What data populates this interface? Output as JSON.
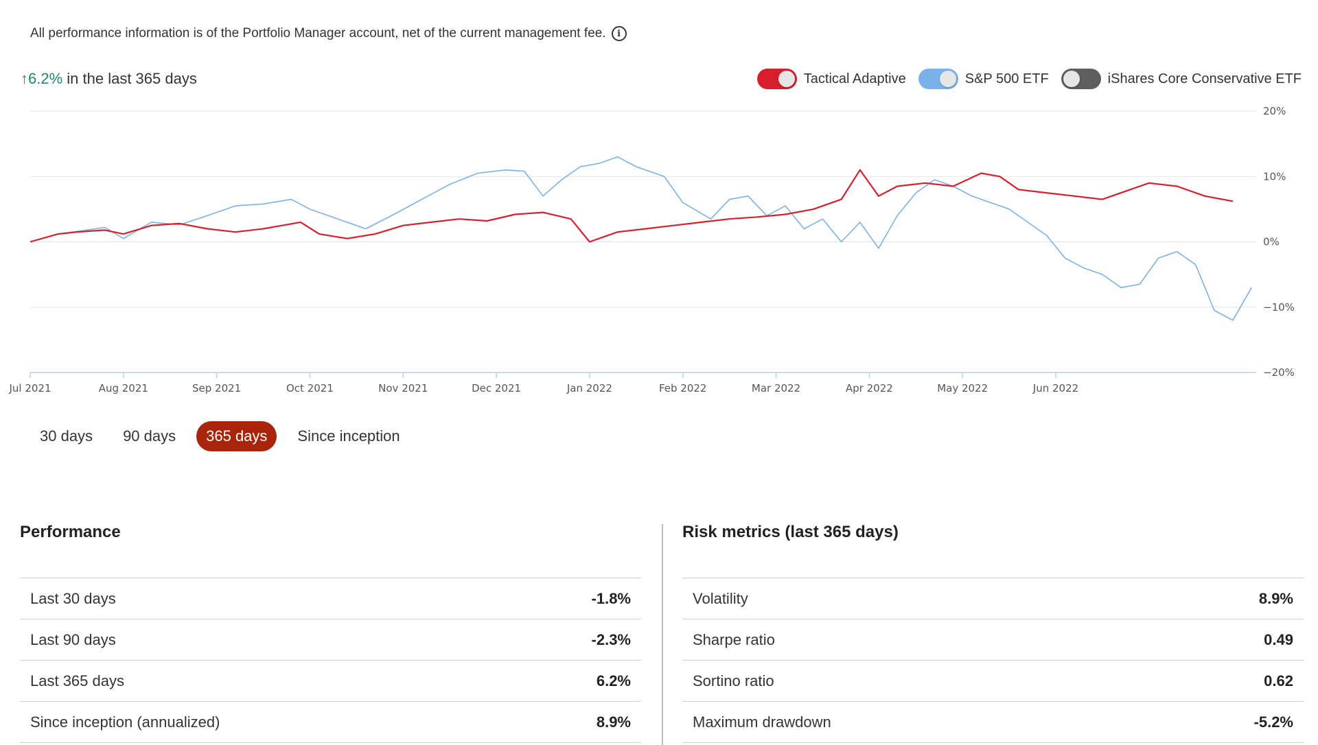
{
  "disclaimer": "All performance information is of the Portfolio Manager account, net of the current management fee.",
  "info_icon": "info-icon",
  "summary": {
    "change": "↑6.2%",
    "suffix": " in the last 365 days"
  },
  "legend": [
    {
      "label": "Tactical Adaptive",
      "color": "#d81e2c",
      "state": "on"
    },
    {
      "label": "S&P 500 ETF",
      "color": "#7ab1e8",
      "state": "on"
    },
    {
      "label": "iShares Core Conservative ETF",
      "color": "#5e5e5e",
      "state": "off"
    }
  ],
  "periods": [
    {
      "label": "30 days",
      "active": false
    },
    {
      "label": "90 days",
      "active": false
    },
    {
      "label": "365 days",
      "active": true
    },
    {
      "label": "Since inception",
      "active": false
    }
  ],
  "performance": {
    "title": "Performance",
    "rows": [
      {
        "label": "Last 30 days",
        "value": "-1.8%"
      },
      {
        "label": "Last 90 days",
        "value": "-2.3%"
      },
      {
        "label": "Last 365 days",
        "value": "6.2%"
      },
      {
        "label": "Since inception (annualized)",
        "value": "8.9%"
      }
    ]
  },
  "risk": {
    "title": "Risk metrics (last 365 days)",
    "rows": [
      {
        "label": "Volatility",
        "value": "8.9%"
      },
      {
        "label": "Sharpe ratio",
        "value": "0.49"
      },
      {
        "label": "Sortino ratio",
        "value": "0.62"
      },
      {
        "label": "Maximum drawdown",
        "value": "-5.2%"
      }
    ]
  },
  "chart_data": {
    "type": "line",
    "title": "",
    "xlabel": "",
    "ylabel": "",
    "x_ticks": [
      "Jul 2021",
      "Aug 2021",
      "Sep 2021",
      "Oct 2021",
      "Nov 2021",
      "Dec 2021",
      "Jan 2022",
      "Feb 2022",
      "Mar 2022",
      "Apr 2022",
      "May 2022",
      "Jun 2022"
    ],
    "y_ticks": [
      "20%",
      "10%",
      "0%",
      "−10%",
      "−20%"
    ],
    "ylim": [
      -20,
      20
    ],
    "grid": true,
    "legend_position": "top-right",
    "x_unit": "months since Jul 2021",
    "series": [
      {
        "name": "Tactical Adaptive",
        "color": "#d81e2c",
        "points": [
          [
            0,
            0
          ],
          [
            0.3,
            1.2
          ],
          [
            0.5,
            1.5
          ],
          [
            0.8,
            1.8
          ],
          [
            1.0,
            1.2
          ],
          [
            1.3,
            2.5
          ],
          [
            1.6,
            2.8
          ],
          [
            1.9,
            2.0
          ],
          [
            2.2,
            1.5
          ],
          [
            2.5,
            2.0
          ],
          [
            2.9,
            3.0
          ],
          [
            3.1,
            1.2
          ],
          [
            3.4,
            0.5
          ],
          [
            3.7,
            1.2
          ],
          [
            4.0,
            2.5
          ],
          [
            4.3,
            3.0
          ],
          [
            4.6,
            3.5
          ],
          [
            4.9,
            3.2
          ],
          [
            5.2,
            4.2
          ],
          [
            5.5,
            4.5
          ],
          [
            5.8,
            3.5
          ],
          [
            6.0,
            0.0
          ],
          [
            6.3,
            1.5
          ],
          [
            6.6,
            2.0
          ],
          [
            6.9,
            2.5
          ],
          [
            7.2,
            3.0
          ],
          [
            7.5,
            3.5
          ],
          [
            7.8,
            3.8
          ],
          [
            8.1,
            4.2
          ],
          [
            8.4,
            5.0
          ],
          [
            8.7,
            6.5
          ],
          [
            8.9,
            11.0
          ],
          [
            9.1,
            7.0
          ],
          [
            9.3,
            8.5
          ],
          [
            9.6,
            9.0
          ],
          [
            9.9,
            8.5
          ],
          [
            10.2,
            10.5
          ],
          [
            10.4,
            10.0
          ],
          [
            10.6,
            8.0
          ],
          [
            10.9,
            7.5
          ],
          [
            11.2,
            7.0
          ],
          [
            11.5,
            6.5
          ],
          [
            11.8,
            8.0
          ],
          [
            12.0,
            9.0
          ],
          [
            12.3,
            8.5
          ],
          [
            12.6,
            7.0
          ],
          [
            12.9,
            6.2
          ]
        ]
      },
      {
        "name": "S&P 500 ETF",
        "color": "#7ab1e8",
        "points": [
          [
            0,
            0
          ],
          [
            0.3,
            1.2
          ],
          [
            0.6,
            1.8
          ],
          [
            0.8,
            2.2
          ],
          [
            1.0,
            0.5
          ],
          [
            1.3,
            3.0
          ],
          [
            1.6,
            2.6
          ],
          [
            1.9,
            4.0
          ],
          [
            2.2,
            5.5
          ],
          [
            2.5,
            5.8
          ],
          [
            2.8,
            6.5
          ],
          [
            3.0,
            5.0
          ],
          [
            3.3,
            3.5
          ],
          [
            3.6,
            2.0
          ],
          [
            3.9,
            4.2
          ],
          [
            4.2,
            6.5
          ],
          [
            4.5,
            8.8
          ],
          [
            4.8,
            10.5
          ],
          [
            5.1,
            11.0
          ],
          [
            5.3,
            10.8
          ],
          [
            5.5,
            7.0
          ],
          [
            5.7,
            9.5
          ],
          [
            5.9,
            11.5
          ],
          [
            6.1,
            12.0
          ],
          [
            6.3,
            13.0
          ],
          [
            6.5,
            11.5
          ],
          [
            6.8,
            10.0
          ],
          [
            7.0,
            6.0
          ],
          [
            7.3,
            3.5
          ],
          [
            7.5,
            6.5
          ],
          [
            7.7,
            7.0
          ],
          [
            7.9,
            4.0
          ],
          [
            8.1,
            5.5
          ],
          [
            8.3,
            2.0
          ],
          [
            8.5,
            3.5
          ],
          [
            8.7,
            0.0
          ],
          [
            8.9,
            3.0
          ],
          [
            9.1,
            -1.0
          ],
          [
            9.3,
            4.0
          ],
          [
            9.5,
            7.5
          ],
          [
            9.7,
            9.5
          ],
          [
            9.9,
            8.5
          ],
          [
            10.1,
            7.0
          ],
          [
            10.3,
            6.0
          ],
          [
            10.5,
            5.0
          ],
          [
            10.7,
            3.0
          ],
          [
            10.9,
            1.0
          ],
          [
            11.1,
            -2.5
          ],
          [
            11.3,
            -4.0
          ],
          [
            11.5,
            -5.0
          ],
          [
            11.7,
            -7.0
          ],
          [
            11.9,
            -6.5
          ],
          [
            12.1,
            -2.5
          ],
          [
            12.3,
            -1.5
          ],
          [
            12.5,
            -3.5
          ],
          [
            12.7,
            -10.5
          ],
          [
            12.9,
            -12.0
          ],
          [
            13.1,
            -7.0
          ]
        ]
      }
    ]
  }
}
